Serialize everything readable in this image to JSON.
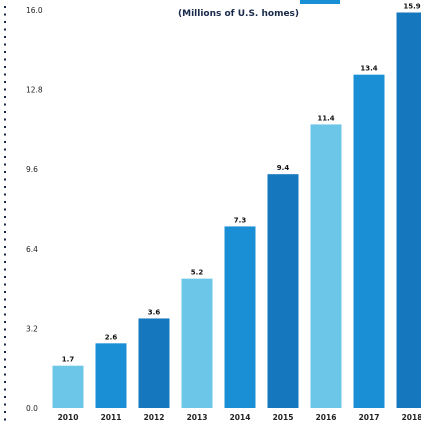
{
  "chart_data": {
    "type": "bar",
    "subtitle": "(Millions of U.S. homes)",
    "title": "",
    "xlabel": "",
    "ylabel": "",
    "categories": [
      "2010",
      "2011",
      "2012",
      "2013",
      "2014",
      "2015",
      "2016",
      "2017",
      "2018"
    ],
    "values": [
      1.7,
      2.6,
      3.6,
      5.2,
      7.3,
      9.4,
      11.4,
      13.4,
      15.9
    ],
    "value_labels": [
      "1.7",
      "2.6",
      "3.6",
      "5.2",
      "7.3",
      "9.4",
      "11.4",
      "13.4",
      "15.9"
    ],
    "ylim": [
      0,
      16
    ],
    "yticks": [
      0,
      3.2,
      6.4,
      9.6,
      12.8,
      16
    ],
    "ytick_labels": [
      "0.0",
      "3.2",
      "6.4",
      "9.6",
      "12.8",
      "16.0"
    ],
    "bar_colors": [
      "#6cc6e8",
      "#1b8fd6",
      "#1578bf",
      "#6cc6e8",
      "#1b8fd6",
      "#1578bf",
      "#6cc6e8",
      "#1b8fd6",
      "#1578bf"
    ],
    "accent_color": "#1b8fd6",
    "grid": false,
    "legend": "none"
  }
}
